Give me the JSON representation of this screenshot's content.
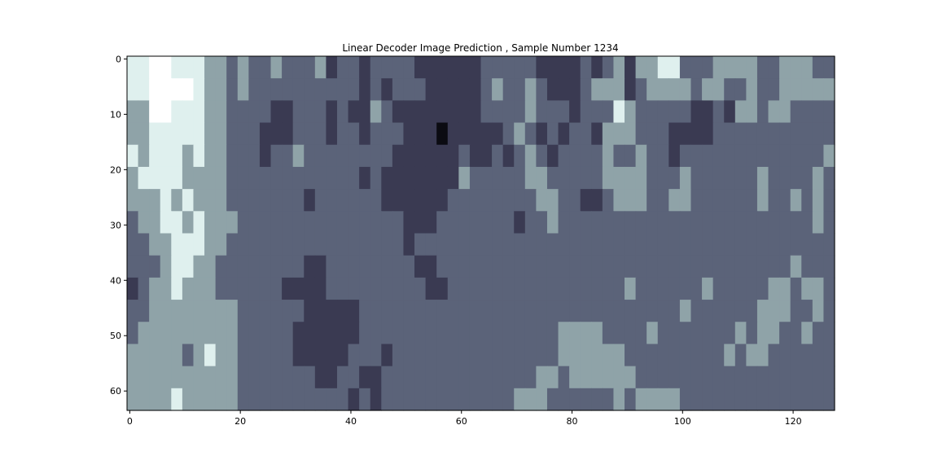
{
  "chart_data": {
    "type": "heatmap",
    "title": "Linear Decoder Image Prediction , Sample Number 1234",
    "xlabel": "",
    "ylabel": "",
    "colormap": "bone",
    "cmap_stops": [
      "#0b0b12",
      "#3a3a52",
      "#5b6379",
      "#8fa3a8",
      "#dff0ee",
      "#ffffff"
    ],
    "image_shape": [
      64,
      128
    ],
    "xlim": [
      -0.5,
      127.5
    ],
    "ylim": [
      63.5,
      -0.5
    ],
    "x_ticks": [
      0,
      20,
      40,
      60,
      80,
      100,
      120
    ],
    "x_tick_labels": [
      "0",
      "20",
      "40",
      "60",
      "80",
      "100",
      "120"
    ],
    "y_ticks": [
      0,
      10,
      20,
      30,
      40,
      50,
      60
    ],
    "y_tick_labels": [
      "0",
      "10",
      "20",
      "30",
      "40",
      "50",
      "60"
    ],
    "grid": false,
    "grid_rows": [
      "4455444332322322231221222211111122222111121231334422233332233322",
      "4456554332322222222221212221111123223211123331233332332232233333",
      "3355444332222112221211321111111122223222122243222221121332332222",
      "3344444332221112221221222111011111232121221333222111122222222222",
      "4344434332221223222222221111112112123212222322322122222222222223",
      "3444433332222222222221211111113222223322222333322232222223222232",
      "3334343332222222122222211111122222222332211233322332222223223232",
      "2334434333222222222222222111222222212232222222222222222222222232",
      "2233444332222222222222222122222222222222222222222222222222222222",
      "2223443322222222112222222211222222222222222222222222222222223222",
      "1233433322222211112222222221122222222222222223222222322222332332",
      "2233333333222222111112222222222222222222222222222232222223332232",
      "2333333333222221111112222222222222222223333222232222222323322322",
      "3333323433222221111122212222222222222223333332222222223233222222",
      "3333333333222222211221122222222222222332333333222222222222222222",
      "3333433333222222222212122222222222233322222232333322222222222222"
    ]
  }
}
